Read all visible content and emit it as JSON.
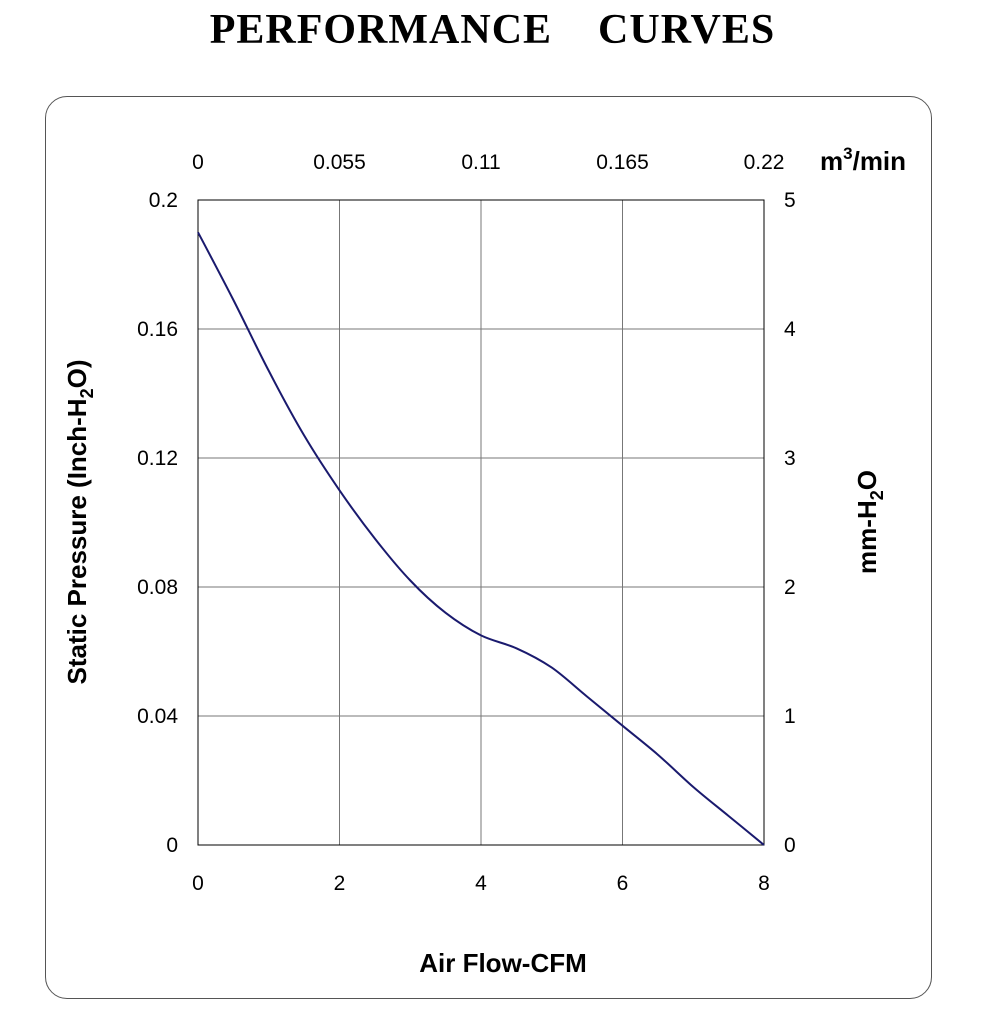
{
  "title": "PERFORMANCE    CURVES",
  "chart_data": {
    "type": "line",
    "xlabel": "Air Flow-CFM",
    "ylabel": "Static Pressure (Inch-H2O)",
    "ylabel_parts": [
      "Static Pressure (Inch-H",
      "2",
      "O)"
    ],
    "y2label": "mm-H2O",
    "y2label_parts": [
      "mm-H",
      "2",
      "O"
    ],
    "x2label": "m3/min",
    "x2label_parts": [
      "m",
      "3",
      "/min"
    ],
    "xlim": [
      0,
      8
    ],
    "ylim": [
      0,
      0.2
    ],
    "x_ticks": [
      "0",
      "2",
      "4",
      "6",
      "8"
    ],
    "y_ticks": [
      "0",
      "0.04",
      "0.08",
      "0.12",
      "0.16",
      "0.2"
    ],
    "x2_ticks": [
      "0",
      "0.055",
      "0.11",
      "0.165",
      "0.22"
    ],
    "y2_ticks": [
      "0",
      "1",
      "2",
      "3",
      "4",
      "5"
    ],
    "grid": true,
    "line_color": "#1a1a6e",
    "series": [
      {
        "x": [
          0,
          0.5,
          1.0,
          1.5,
          2.0,
          2.5,
          3.0,
          3.5,
          4.0,
          4.5,
          5.0,
          5.5,
          6.0,
          6.5,
          7.0,
          7.5,
          8.0
        ],
        "y": [
          0.19,
          0.169,
          0.147,
          0.127,
          0.11,
          0.095,
          0.082,
          0.072,
          0.065,
          0.061,
          0.055,
          0.046,
          0.037,
          0.028,
          0.018,
          0.009,
          0.0
        ]
      }
    ]
  }
}
